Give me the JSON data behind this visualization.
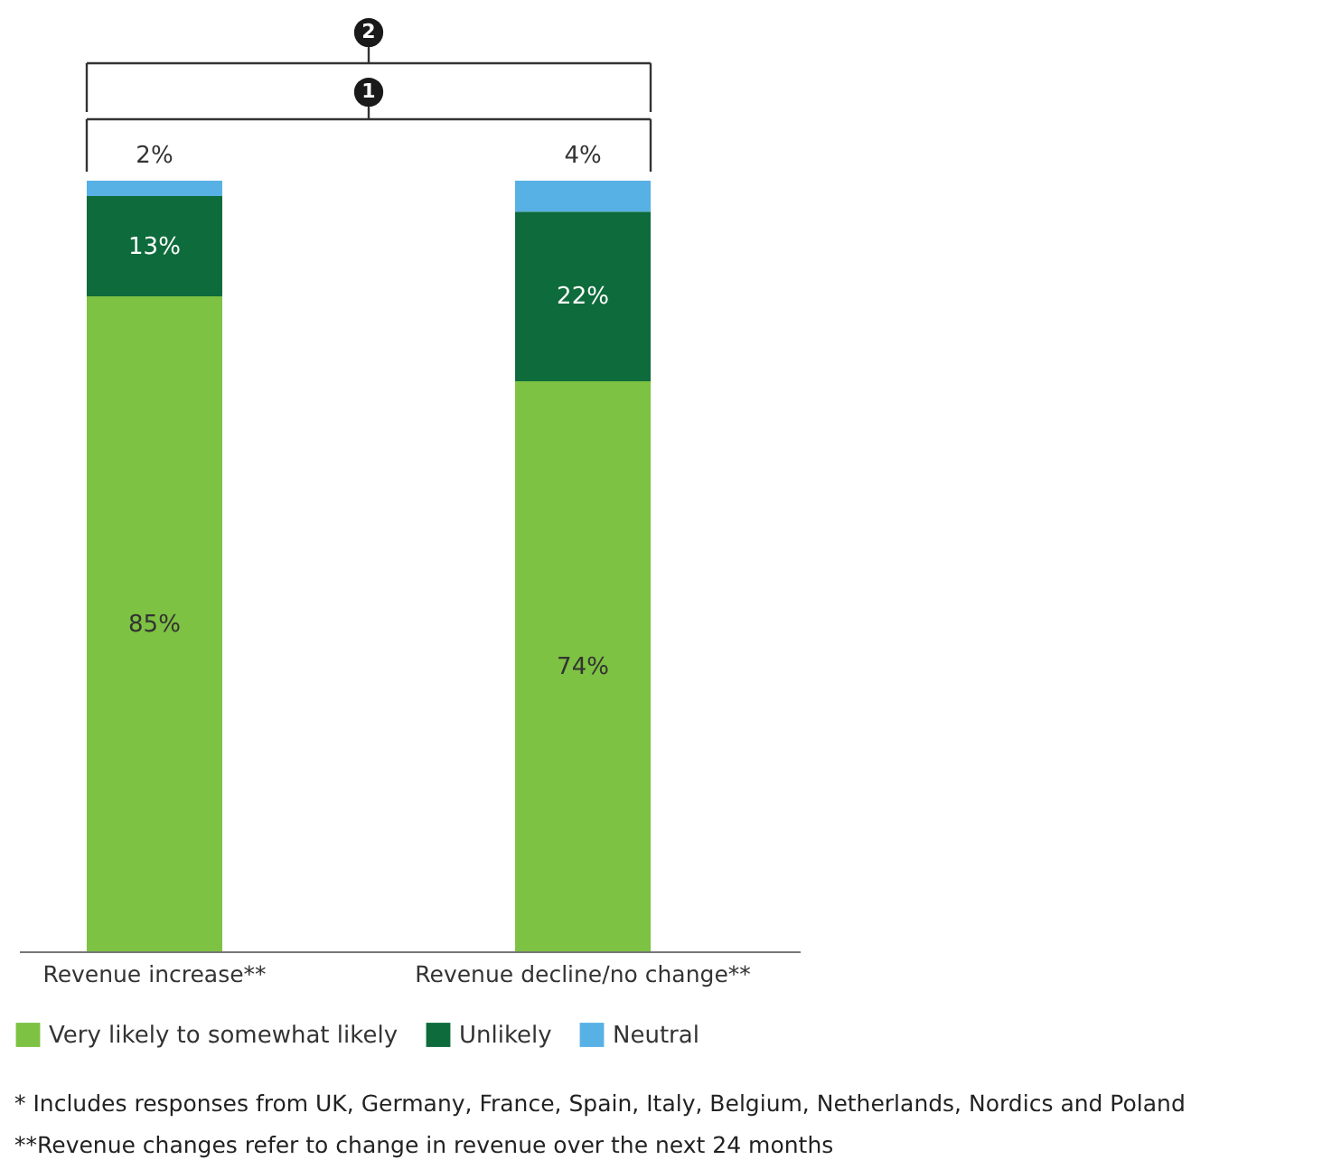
{
  "chart_data": {
    "type": "bar",
    "stacked": true,
    "legend": "bottom",
    "categories": [
      "Revenue increase**",
      "Revenue decline/no change**"
    ],
    "series": [
      {
        "name": "Very likely to somewhat likely",
        "color": "#7dc242",
        "values": [
          85,
          74
        ],
        "value_labels": [
          "85%",
          "74%"
        ]
      },
      {
        "name": "Unlikely",
        "color": "#0e6b3b",
        "values": [
          13,
          22
        ],
        "value_labels": [
          "13%",
          "22%"
        ]
      },
      {
        "name": "Neutral",
        "color": "#57b1e4",
        "values": [
          2,
          4
        ],
        "value_labels": [
          "2%",
          "4%"
        ]
      }
    ],
    "annotations": [
      "1",
      "2",
      "* Includes responses from UK, Germany, France, Spain, Italy, Belgium, Netherlands, Nordics and Poland",
      "**Revenue changes refer to change in revenue over the next 24 months"
    ]
  }
}
